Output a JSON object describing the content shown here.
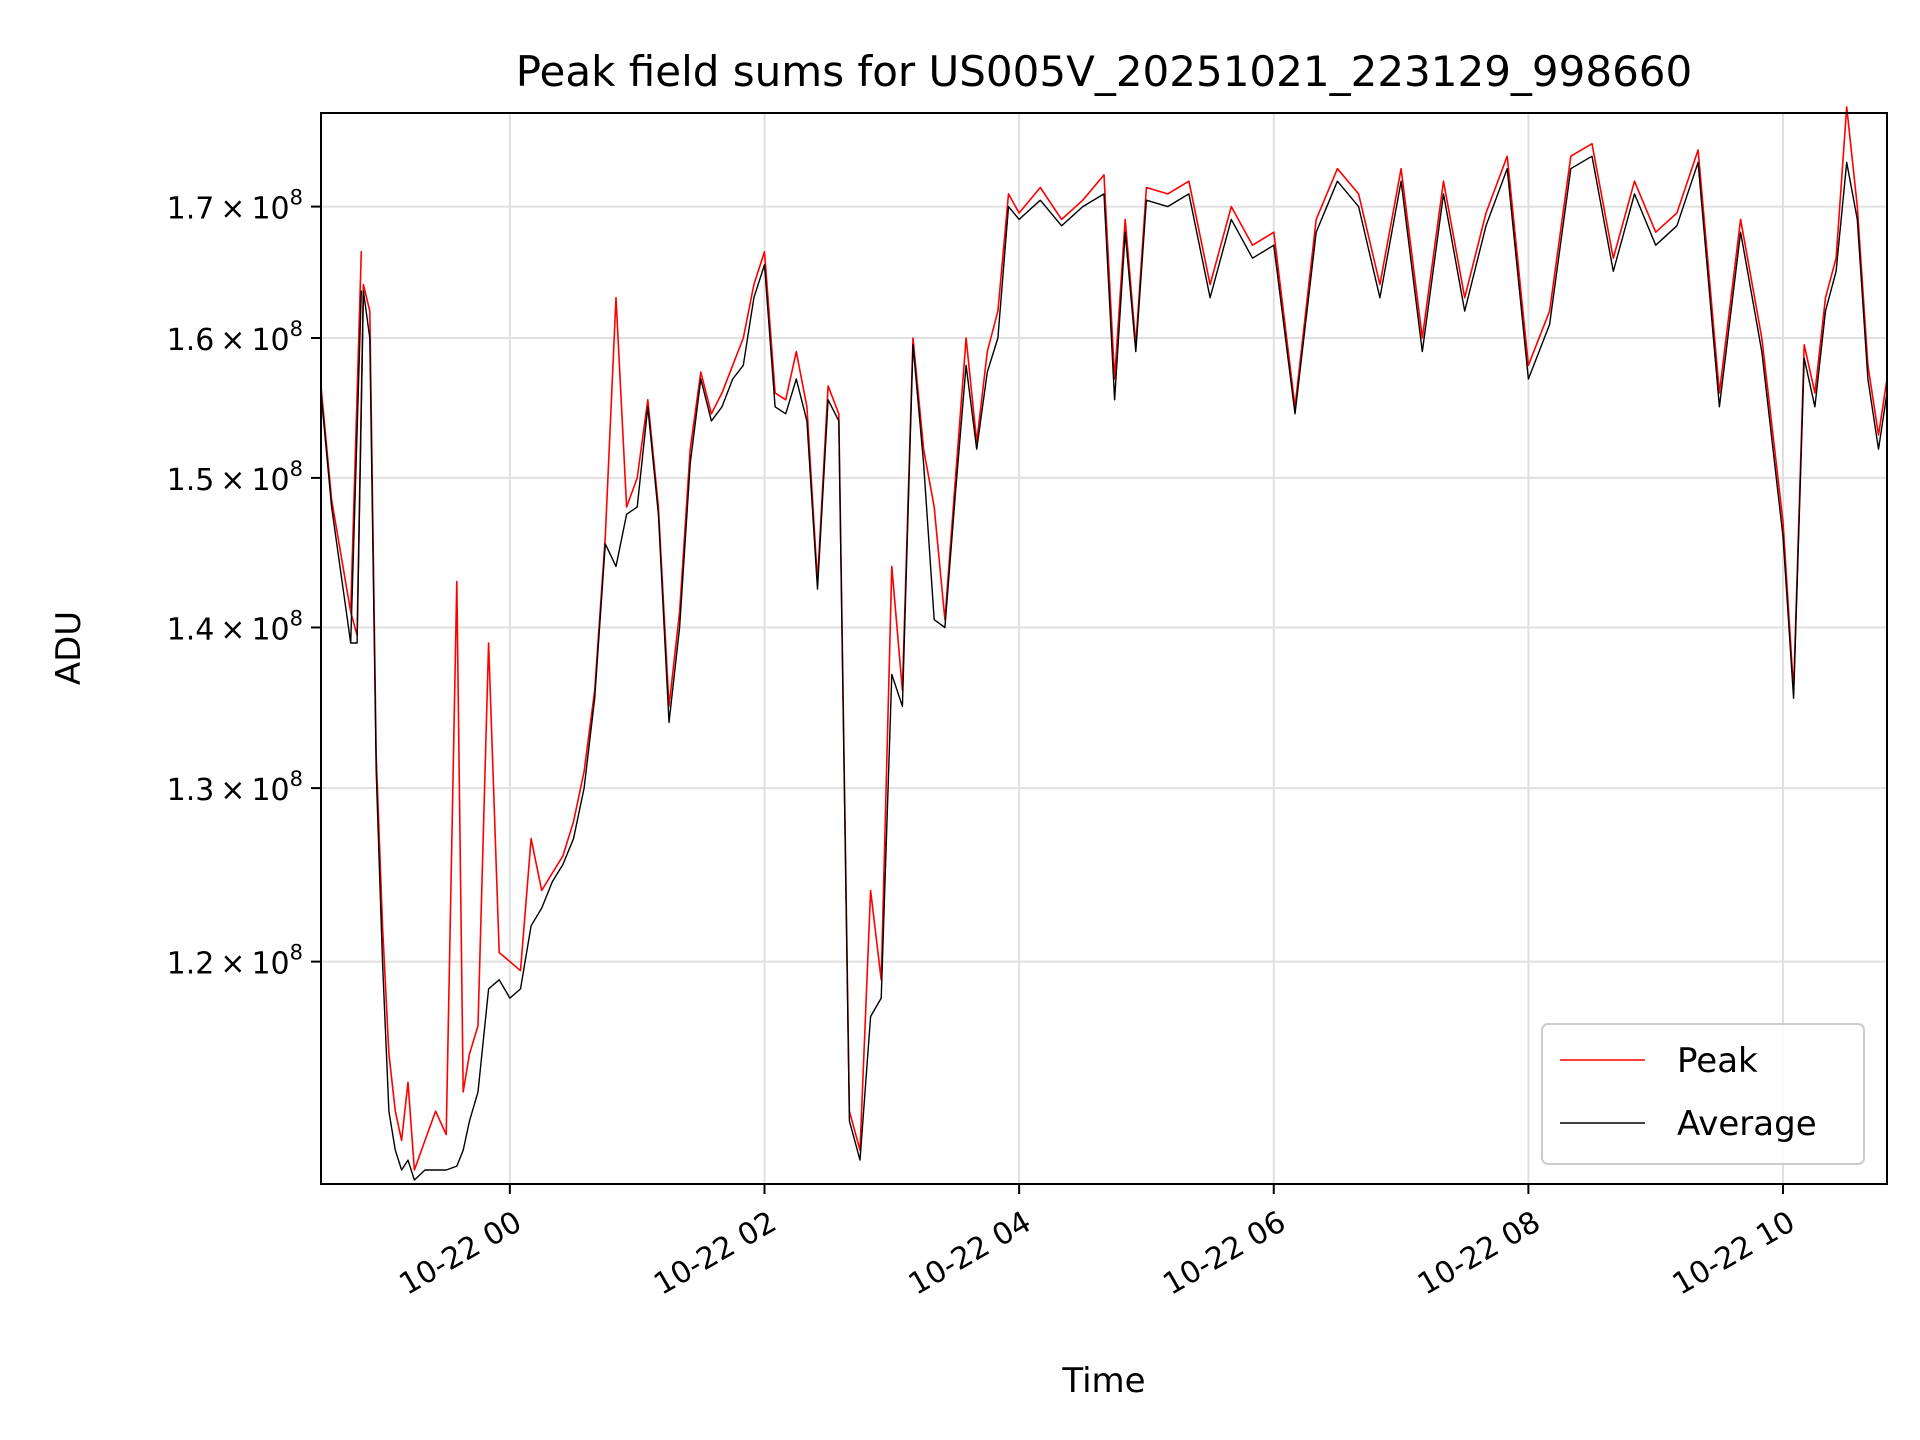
{
  "chart_data": {
    "type": "line",
    "title": "Peak field sums for US005V_20251021_223129_998660",
    "xlabel": "Time",
    "ylabel": "ADU",
    "x_tick_labels": [
      "10-22 00",
      "10-22 02",
      "10-22 04",
      "10-22 06",
      "10-22 08",
      "10-22 10"
    ],
    "y_tick_labels": [
      {
        "mantissa": "1.2",
        "exponent": "8"
      },
      {
        "mantissa": "1.3",
        "exponent": "8"
      },
      {
        "mantissa": "1.4",
        "exponent": "8"
      },
      {
        "mantissa": "1.5",
        "exponent": "8"
      },
      {
        "mantissa": "1.6",
        "exponent": "8"
      },
      {
        "mantissa": "1.7",
        "exponent": "8"
      }
    ],
    "xlim": [
      "2025-10-21T22:31",
      "2025-10-22T10:49"
    ],
    "ylim": [
      108300000.0,
      177500000.0
    ],
    "y_scale": "log",
    "grid": true,
    "legend_position": "lower right",
    "series": [
      {
        "name": "Peak",
        "color": "#ff0000",
        "x": [
          "2025-10-21T22:31",
          "2025-10-21T22:36",
          "2025-10-21T22:45",
          "2025-10-21T22:50",
          "2025-10-21T22:45",
          "2025-10-21T22:48",
          "2025-10-21T22:51",
          "2025-10-21T22:54",
          "2025-10-21T22:57",
          "2025-10-21T23:00",
          "2025-10-21T23:03",
          "2025-10-21T23:06",
          "2025-10-21T23:09",
          "2025-10-21T23:12",
          "2025-10-21T23:15",
          "2025-10-21T23:20",
          "2025-10-21T23:25",
          "2025-10-21T23:30",
          "2025-10-21T23:35",
          "2025-10-21T23:38",
          "2025-10-21T23:41",
          "2025-10-21T23:45",
          "2025-10-21T23:50",
          "2025-10-21T23:55",
          "2025-10-22T00:00",
          "2025-10-22T00:05",
          "2025-10-22T00:10",
          "2025-10-22T00:15",
          "2025-10-22T00:20",
          "2025-10-22T00:25",
          "2025-10-22T00:30",
          "2025-10-22T00:35",
          "2025-10-22T00:40",
          "2025-10-22T00:45",
          "2025-10-22T00:50",
          "2025-10-22T00:55",
          "2025-10-22T01:00",
          "2025-10-22T01:05",
          "2025-10-22T01:10",
          "2025-10-22T01:15",
          "2025-10-22T01:20",
          "2025-10-22T01:25",
          "2025-10-22T01:30",
          "2025-10-22T01:35",
          "2025-10-22T01:40",
          "2025-10-22T01:45",
          "2025-10-22T01:50",
          "2025-10-22T01:55",
          "2025-10-22T02:00",
          "2025-10-22T02:05",
          "2025-10-22T02:10",
          "2025-10-22T02:15",
          "2025-10-22T02:20",
          "2025-10-22T02:25",
          "2025-10-22T02:30",
          "2025-10-22T02:35",
          "2025-10-22T02:40",
          "2025-10-22T02:45",
          "2025-10-22T02:50",
          "2025-10-22T02:55",
          "2025-10-22T03:00",
          "2025-10-22T03:05",
          "2025-10-22T03:10",
          "2025-10-22T03:15",
          "2025-10-22T03:20",
          "2025-10-22T03:25",
          "2025-10-22T03:30",
          "2025-10-22T03:35",
          "2025-10-22T03:40",
          "2025-10-22T03:45",
          "2025-10-22T03:50",
          "2025-10-22T03:55",
          "2025-10-22T04:00",
          "2025-10-22T04:10",
          "2025-10-22T04:20",
          "2025-10-22T04:30",
          "2025-10-22T04:40",
          "2025-10-22T04:45",
          "2025-10-22T04:50",
          "2025-10-22T04:55",
          "2025-10-22T05:00",
          "2025-10-22T05:10",
          "2025-10-22T05:20",
          "2025-10-22T05:30",
          "2025-10-22T05:40",
          "2025-10-22T05:50",
          "2025-10-22T06:00",
          "2025-10-22T06:10",
          "2025-10-22T06:20",
          "2025-10-22T06:30",
          "2025-10-22T06:40",
          "2025-10-22T06:50",
          "2025-10-22T07:00",
          "2025-10-22T07:10",
          "2025-10-22T07:20",
          "2025-10-22T07:30",
          "2025-10-22T07:40",
          "2025-10-22T07:50",
          "2025-10-22T08:00",
          "2025-10-22T08:10",
          "2025-10-22T08:20",
          "2025-10-22T08:30",
          "2025-10-22T08:40",
          "2025-10-22T08:50",
          "2025-10-22T09:00",
          "2025-10-22T09:10",
          "2025-10-22T09:20",
          "2025-10-22T09:30",
          "2025-10-22T09:40",
          "2025-10-22T09:50",
          "2025-10-22T10:00",
          "2025-10-22T10:05",
          "2025-10-22T10:10",
          "2025-10-22T10:15",
          "2025-10-22T10:20",
          "2025-10-22T10:25",
          "2025-10-22T10:30",
          "2025-10-22T10:35",
          "2025-10-22T10:40",
          "2025-10-22T10:45",
          "2025-10-22T10:49"
        ],
        "y": [
          156500000.0,
          148500000.0,
          141000000.0,
          166500000.0,
          141000000.0,
          139500000.0,
          164000000.0,
          162000000.0,
          132000000.0,
          122000000.0,
          115000000.0,
          112000000.0,
          110500000.0,
          113500000.0,
          109000000.0,
          110500000.0,
          112000000.0,
          110800000.0,
          143000000.0,
          113000000.0,
          115000000.0,
          116500000.0,
          139000000.0,
          120500000.0,
          120000000.0,
          119500000.0,
          127000000.0,
          124000000.0,
          125000000.0,
          126000000.0,
          128000000.0,
          131000000.0,
          136000000.0,
          146000000.0,
          163000000.0,
          148000000.0,
          150000000.0,
          155500000.0,
          148000000.0,
          135000000.0,
          141000000.0,
          152000000.0,
          157500000.0,
          154500000.0,
          156000000.0,
          158000000.0,
          160000000.0,
          164000000.0,
          166500000.0,
          156000000.0,
          155500000.0,
          159000000.0,
          155000000.0,
          143000000.0,
          156500000.0,
          154500000.0,
          112000000.0,
          110000000.0,
          124000000.0,
          119000000.0,
          144000000.0,
          136000000.0,
          160000000.0,
          152000000.0,
          148000000.0,
          140500000.0,
          150000000.0,
          160000000.0,
          152500000.0,
          159000000.0,
          162000000.0,
          171000000.0,
          169500000.0,
          171500000.0,
          169000000.0,
          170500000.0,
          172500000.0,
          157000000.0,
          169000000.0,
          159500000.0,
          171500000.0,
          171000000.0,
          172000000.0,
          164000000.0,
          170000000.0,
          167000000.0,
          168000000.0,
          155000000.0,
          169000000.0,
          173000000.0,
          171000000.0,
          164000000.0,
          173000000.0,
          160000000.0,
          172000000.0,
          163000000.0,
          169500000.0,
          174000000.0,
          158000000.0,
          162000000.0,
          174000000.0,
          175000000.0,
          166000000.0,
          172000000.0,
          168000000.0,
          169500000.0,
          174500000.0,
          156000000.0,
          169000000.0,
          160000000.0,
          147000000.0,
          136000000.0,
          159500000.0,
          156000000.0,
          163000000.0,
          166000000.0,
          178000000.0,
          170000000.0,
          158000000.0,
          153000000.0,
          157000000.0
        ]
      },
      {
        "name": "Average",
        "color": "#000000",
        "x": [
          "2025-10-21T22:31",
          "2025-10-21T22:36",
          "2025-10-21T22:45",
          "2025-10-21T22:50",
          "2025-10-21T22:45",
          "2025-10-21T22:48",
          "2025-10-21T22:51",
          "2025-10-21T22:54",
          "2025-10-21T22:57",
          "2025-10-21T23:00",
          "2025-10-21T23:03",
          "2025-10-21T23:06",
          "2025-10-21T23:09",
          "2025-10-21T23:12",
          "2025-10-21T23:15",
          "2025-10-21T23:20",
          "2025-10-21T23:25",
          "2025-10-21T23:30",
          "2025-10-21T23:35",
          "2025-10-21T23:38",
          "2025-10-21T23:41",
          "2025-10-21T23:45",
          "2025-10-21T23:50",
          "2025-10-21T23:55",
          "2025-10-22T00:00",
          "2025-10-22T00:05",
          "2025-10-22T00:10",
          "2025-10-22T00:15",
          "2025-10-22T00:20",
          "2025-10-22T00:25",
          "2025-10-22T00:30",
          "2025-10-22T00:35",
          "2025-10-22T00:40",
          "2025-10-22T00:45",
          "2025-10-22T00:50",
          "2025-10-22T00:55",
          "2025-10-22T01:00",
          "2025-10-22T01:05",
          "2025-10-22T01:10",
          "2025-10-22T01:15",
          "2025-10-22T01:20",
          "2025-10-22T01:25",
          "2025-10-22T01:30",
          "2025-10-22T01:35",
          "2025-10-22T01:40",
          "2025-10-22T01:45",
          "2025-10-22T01:50",
          "2025-10-22T01:55",
          "2025-10-22T02:00",
          "2025-10-22T02:05",
          "2025-10-22T02:10",
          "2025-10-22T02:15",
          "2025-10-22T02:20",
          "2025-10-22T02:25",
          "2025-10-22T02:30",
          "2025-10-22T02:35",
          "2025-10-22T02:40",
          "2025-10-22T02:45",
          "2025-10-22T02:50",
          "2025-10-22T02:55",
          "2025-10-22T03:00",
          "2025-10-22T03:05",
          "2025-10-22T03:10",
          "2025-10-22T03:15",
          "2025-10-22T03:20",
          "2025-10-22T03:25",
          "2025-10-22T03:30",
          "2025-10-22T03:35",
          "2025-10-22T03:40",
          "2025-10-22T03:45",
          "2025-10-22T03:50",
          "2025-10-22T03:55",
          "2025-10-22T04:00",
          "2025-10-22T04:10",
          "2025-10-22T04:20",
          "2025-10-22T04:30",
          "2025-10-22T04:40",
          "2025-10-22T04:45",
          "2025-10-22T04:50",
          "2025-10-22T04:55",
          "2025-10-22T05:00",
          "2025-10-22T05:10",
          "2025-10-22T05:20",
          "2025-10-22T05:30",
          "2025-10-22T05:40",
          "2025-10-22T05:50",
          "2025-10-22T06:00",
          "2025-10-22T06:10",
          "2025-10-22T06:20",
          "2025-10-22T06:30",
          "2025-10-22T06:40",
          "2025-10-22T06:50",
          "2025-10-22T07:00",
          "2025-10-22T07:10",
          "2025-10-22T07:20",
          "2025-10-22T07:30",
          "2025-10-22T07:40",
          "2025-10-22T07:50",
          "2025-10-22T08:00",
          "2025-10-22T08:10",
          "2025-10-22T08:20",
          "2025-10-22T08:30",
          "2025-10-22T08:40",
          "2025-10-22T08:50",
          "2025-10-22T09:00",
          "2025-10-22T09:10",
          "2025-10-22T09:20",
          "2025-10-22T09:30",
          "2025-10-22T09:40",
          "2025-10-22T09:50",
          "2025-10-22T10:00",
          "2025-10-22T10:05",
          "2025-10-22T10:10",
          "2025-10-22T10:15",
          "2025-10-22T10:20",
          "2025-10-22T10:25",
          "2025-10-22T10:30",
          "2025-10-22T10:35",
          "2025-10-22T10:40",
          "2025-10-22T10:45",
          "2025-10-22T10:49"
        ],
        "y": [
          156000000.0,
          148000000.0,
          139000000.0,
          163500000.0,
          139000000.0,
          139000000.0,
          163500000.0,
          160000000.0,
          131000000.0,
          120000000.0,
          112000000.0,
          110000000.0,
          109000000.0,
          109500000.0,
          108500000.0,
          109000000.0,
          109000000.0,
          109000000.0,
          109200000.0,
          110000000.0,
          111500000.0,
          113000000.0,
          118500000.0,
          119000000.0,
          118000000.0,
          118500000.0,
          122000000.0,
          123000000.0,
          124500000.0,
          125500000.0,
          127000000.0,
          130000000.0,
          135500000.0,
          145500000.0,
          144000000.0,
          147500000.0,
          148000000.0,
          155000000.0,
          147500000.0,
          134000000.0,
          140000000.0,
          151000000.0,
          157000000.0,
          154000000.0,
          155000000.0,
          157000000.0,
          158000000.0,
          163000000.0,
          165500000.0,
          155000000.0,
          154500000.0,
          157000000.0,
          154000000.0,
          142500000.0,
          155500000.0,
          154000000.0,
          111500000.0,
          109500000.0,
          117000000.0,
          118000000.0,
          137000000.0,
          135000000.0,
          159500000.0,
          151000000.0,
          140500000.0,
          140000000.0,
          149000000.0,
          158000000.0,
          152000000.0,
          157500000.0,
          160000000.0,
          170000000.0,
          169000000.0,
          170500000.0,
          168500000.0,
          170000000.0,
          171000000.0,
          155500000.0,
          168000000.0,
          159000000.0,
          170500000.0,
          170000000.0,
          171000000.0,
          163000000.0,
          169000000.0,
          166000000.0,
          167000000.0,
          154500000.0,
          168000000.0,
          172000000.0,
          170000000.0,
          163000000.0,
          172000000.0,
          159000000.0,
          171000000.0,
          162000000.0,
          168500000.0,
          173000000.0,
          157000000.0,
          161000000.0,
          173000000.0,
          174000000.0,
          165000000.0,
          171000000.0,
          167000000.0,
          168500000.0,
          173500000.0,
          155000000.0,
          168000000.0,
          159000000.0,
          146000000.0,
          135500000.0,
          158500000.0,
          155000000.0,
          162000000.0,
          165000000.0,
          173500000.0,
          169000000.0,
          157000000.0,
          152000000.0,
          156000000.0
        ]
      }
    ]
  }
}
